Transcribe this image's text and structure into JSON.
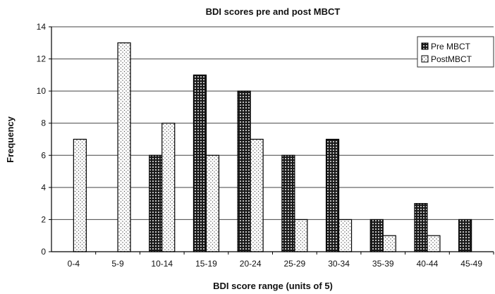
{
  "chart_data": {
    "type": "bar",
    "title": "BDI scores pre and post MBCT",
    "xlabel": "BDI score range (units of 5)",
    "ylabel": "Frequency",
    "categories": [
      "0-4",
      "5-9",
      "10-14",
      "15-19",
      "20-24",
      "25-29",
      "30-34",
      "35-39",
      "40-44",
      "45-49"
    ],
    "series": [
      {
        "name": "Pre MBCT",
        "values": [
          0,
          0,
          6,
          11,
          10,
          6,
          7,
          2,
          3,
          2
        ]
      },
      {
        "name": "PostMBCT",
        "values": [
          7,
          13,
          8,
          6,
          7,
          2,
          2,
          1,
          1,
          0
        ]
      }
    ],
    "ylim": [
      0,
      14
    ],
    "yticks": [
      0,
      2,
      4,
      6,
      8,
      10,
      12,
      14
    ],
    "grid": true,
    "legend": "top-right"
  }
}
